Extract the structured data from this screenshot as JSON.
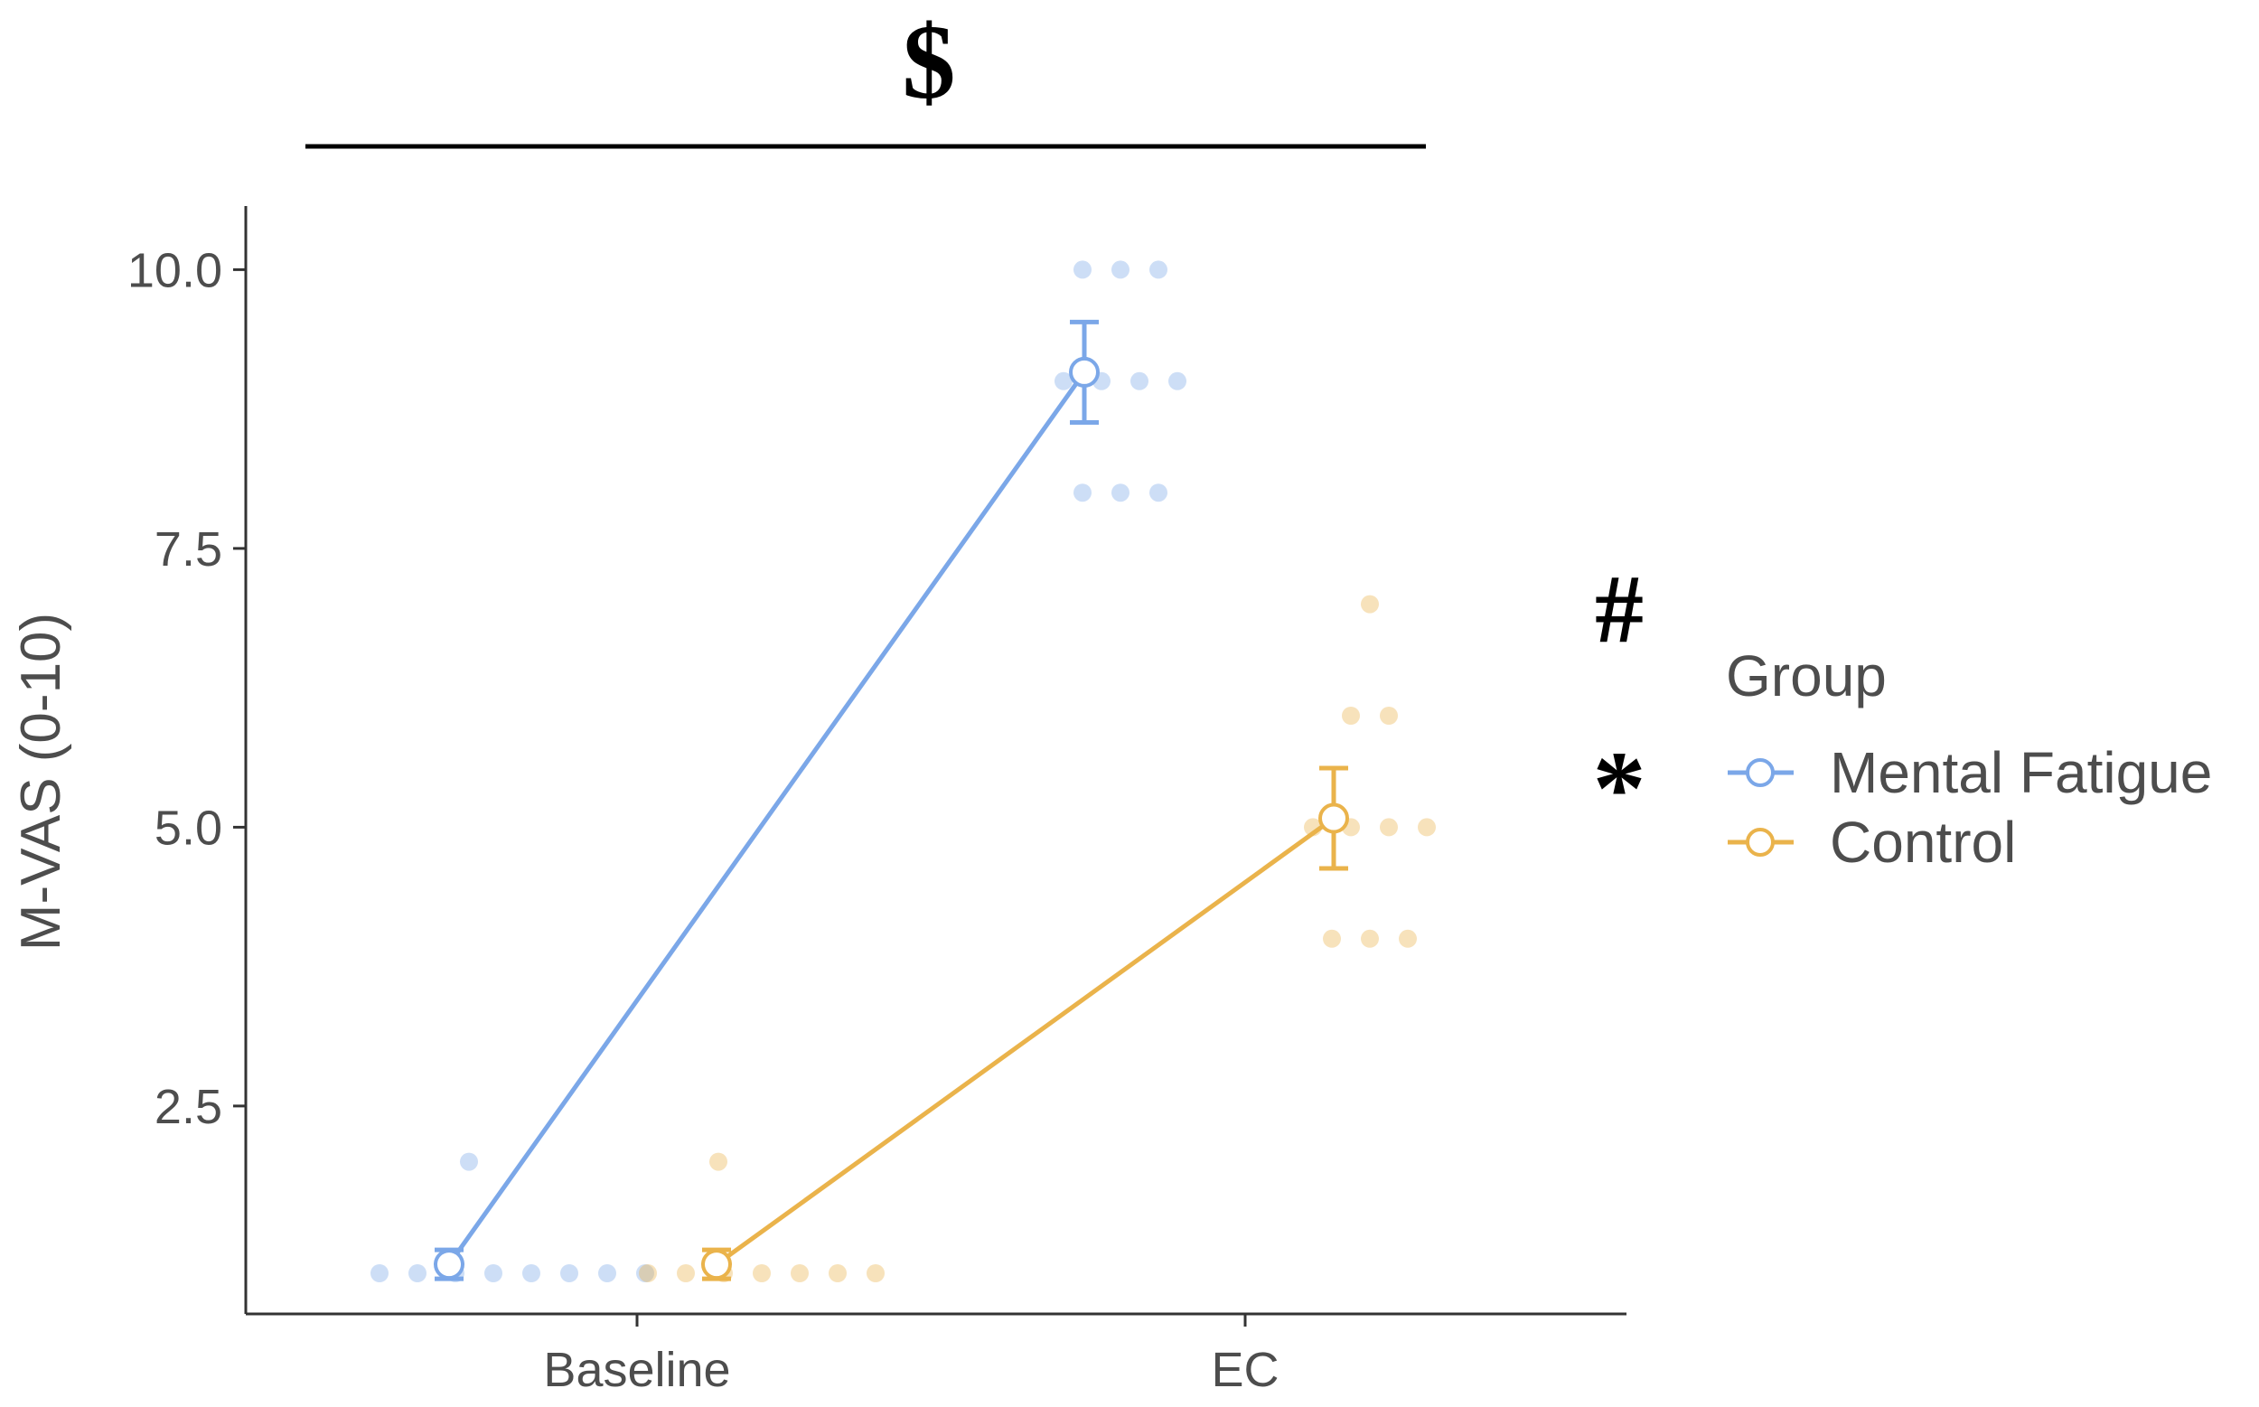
{
  "chart_data": {
    "type": "line",
    "title": "",
    "xlabel": "",
    "ylabel": "M-VAS (0-10)",
    "categories": [
      "Baseline",
      "EC"
    ],
    "yticks": [
      "2.5",
      "5.0",
      "7.5",
      "10.0"
    ],
    "ytick_values": [
      2.5,
      5.0,
      7.5,
      10.0
    ],
    "ylim": [
      0.5,
      10.4
    ],
    "legend": {
      "title": "Group",
      "placement": "right"
    },
    "series": [
      {
        "name": "Mental Fatigue",
        "color": "#7ba7e8",
        "means": [
          1.08,
          9.08
        ],
        "errors": [
          0.13,
          0.45
        ],
        "points": [
          [
            2,
            1,
            1,
            1,
            1,
            1,
            1,
            1,
            1
          ],
          [
            10,
            10,
            10,
            9,
            9,
            9,
            9,
            8,
            8,
            8
          ]
        ]
      },
      {
        "name": "Control",
        "color": "#eab34b",
        "means": [
          1.08,
          5.08
        ],
        "errors": [
          0.13,
          0.45
        ],
        "points": [
          [
            2,
            1,
            1,
            1,
            1,
            1,
            1,
            1
          ],
          [
            7,
            6,
            6,
            5,
            5,
            5,
            5,
            4,
            4,
            4
          ]
        ]
      }
    ],
    "annotations": [
      {
        "text": "$",
        "meaning": "bracket-over-time"
      },
      {
        "text": "#",
        "meaning": "group-main-effect"
      },
      {
        "text": "*",
        "meaning": "interaction"
      }
    ]
  }
}
